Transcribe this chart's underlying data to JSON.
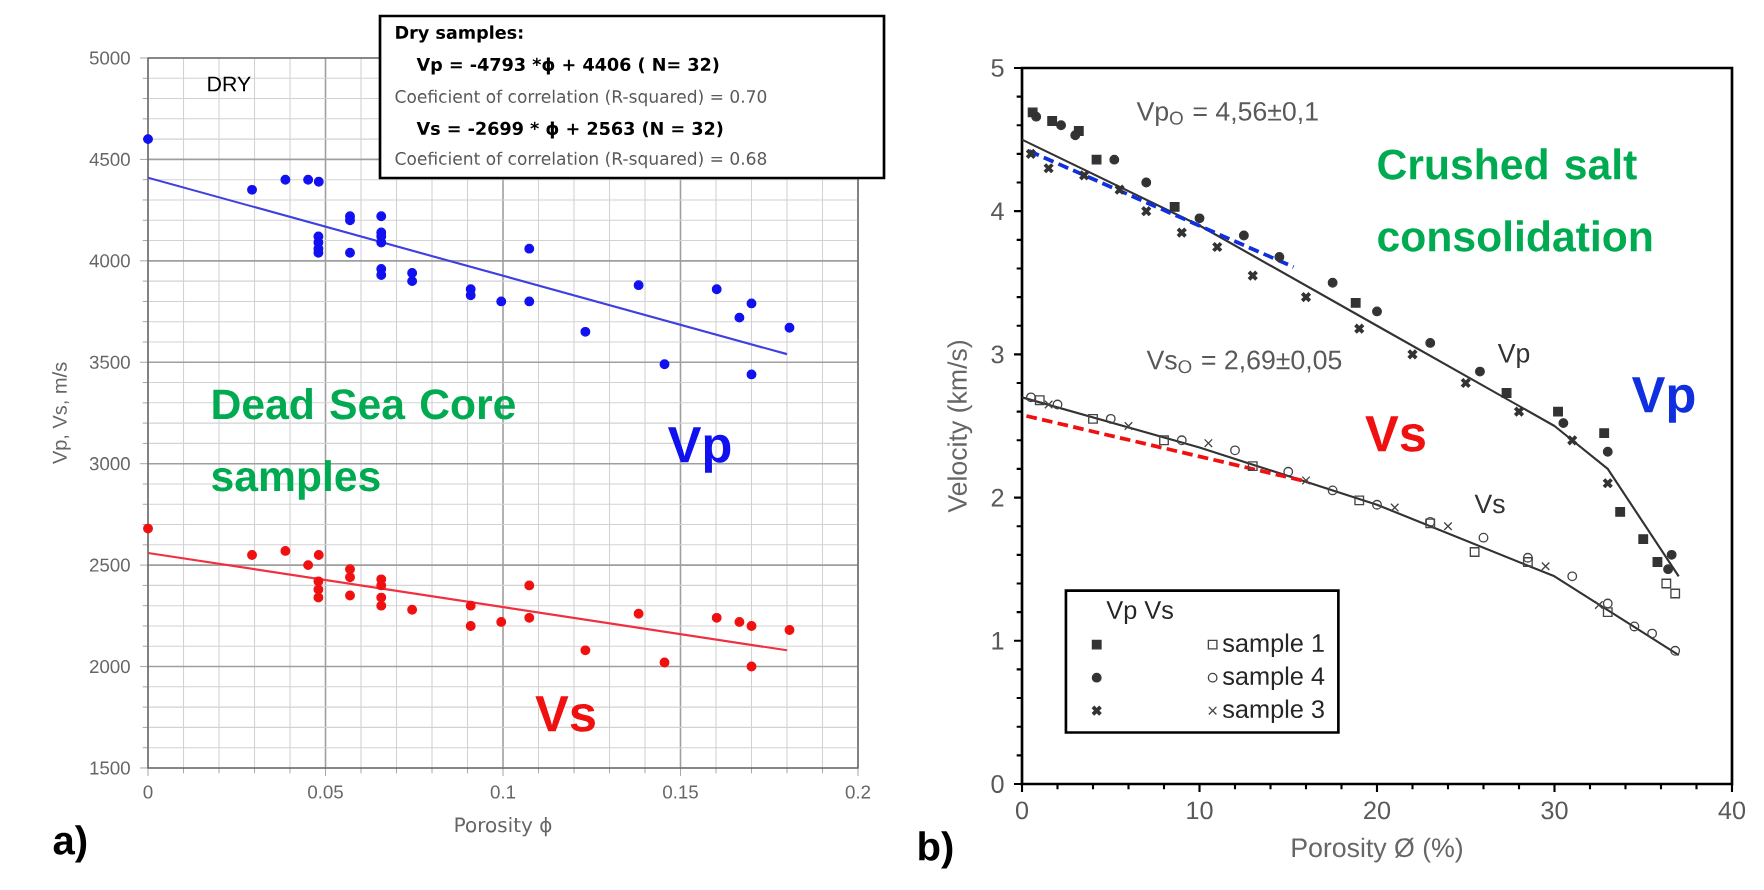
{
  "chart_data": [
    {
      "type": "scatter",
      "xlabel": "Porosity ϕ",
      "ylabel": "Vp, Vs, m/s",
      "xlim": [
        0,
        0.2
      ],
      "ylim": [
        1500,
        5000
      ],
      "xticks": [
        0,
        0.05,
        0.1,
        0.15,
        0.2
      ],
      "yticks": [
        1500,
        2000,
        2500,
        3000,
        3500,
        4000,
        4500,
        5000
      ],
      "grid": true,
      "marker": "circle",
      "annotations": [
        "DRY",
        "Dry samples:",
        "Vp = -4793 *ϕ + 4406   ( N= 32)",
        "Coeficient of correlation (R-squared) = 0.70",
        "Vs = -2699 * ϕ + 2563  (N = 32)",
        "Coeficient of correlation (R-squared) = 0.68",
        "Dead Sea Core samples",
        "a)"
      ],
      "series": [
        {
          "name": "Vp",
          "color": "#1010f0",
          "x": [
            0,
            0.0293,
            0.0387,
            0.0451,
            0.0481,
            0.048,
            0.048,
            0.048,
            0.048,
            0.0569,
            0.0569,
            0.0569,
            0.0657,
            0.0657,
            0.0657,
            0.0657,
            0.0657,
            0.0657,
            0.0744,
            0.0744,
            0.0909,
            0.0909,
            0.0995,
            0.1074,
            0.1074,
            0.1232,
            0.1382,
            0.1455,
            0.1602,
            0.1666,
            0.17,
            0.17,
            0.1807
          ],
          "values": [
            4600,
            4350,
            4400,
            4400,
            4390,
            4120,
            4090,
            4060,
            4040,
            4220,
            4200,
            4040,
            4220,
            4140,
            4120,
            4090,
            3960,
            3930,
            3940,
            3900,
            3860,
            3830,
            3800,
            4060,
            3800,
            3650,
            3880,
            3490,
            3860,
            3720,
            3790,
            3440,
            3670
          ]
        },
        {
          "name": "Vs",
          "color": "#f01010",
          "x": [
            0,
            0.0293,
            0.0387,
            0.0451,
            0.0481,
            0.048,
            0.048,
            0.048,
            0.0569,
            0.0569,
            0.0569,
            0.0657,
            0.0657,
            0.0657,
            0.0657,
            0.0744,
            0.0909,
            0.0909,
            0.0995,
            0.1074,
            0.1074,
            0.1232,
            0.1382,
            0.1455,
            0.1602,
            0.1666,
            0.17,
            0.17,
            0.1807
          ],
          "values": [
            2680,
            2550,
            2570,
            2500,
            2550,
            2420,
            2380,
            2340,
            2480,
            2440,
            2350,
            2430,
            2400,
            2340,
            2300,
            2280,
            2300,
            2200,
            2220,
            2400,
            2240,
            2080,
            2260,
            2020,
            2240,
            2220,
            2200,
            2000,
            2180
          ]
        },
        {
          "type": "line",
          "color": "#4040e0",
          "marker": "none",
          "x": [
            0,
            0.18
          ],
          "values": [
            4410,
            3540
          ]
        },
        {
          "type": "line",
          "color": "#f03040",
          "marker": "none",
          "x": [
            0,
            0.18
          ],
          "values": [
            2560,
            2080
          ]
        }
      ]
    },
    {
      "type": "scatter",
      "xlabel": "Porosity Ø (%)",
      "ylabel": "Velocity (km/s)",
      "xlim": [
        0,
        40
      ],
      "ylim": [
        0,
        5
      ],
      "xticks": [
        0,
        10,
        20,
        30,
        40
      ],
      "yticks": [
        0,
        1,
        2,
        3,
        4,
        5
      ],
      "legend": "bottom left",
      "legend_title": "Vp Vs",
      "annotations": [
        "Vp$_{O}$ = 4,56±0,1",
        "Vs$_{O}$ = 2,69±0,05",
        "Crushed salt consolidation",
        "b)"
      ],
      "series": [
        {
          "color": "#333333",
          "marker": "square",
          "x": [
            0.6,
            1.7,
            3.2,
            4.2,
            8.6,
            18.8,
            27.3,
            30.2,
            32.8,
            33.7,
            35.0,
            35.8
          ],
          "values": [
            4.69,
            4.63,
            4.56,
            4.36,
            4.03,
            3.36,
            2.73,
            2.6,
            2.45,
            1.9,
            1.71,
            1.55
          ]
        },
        {
          "color": "#333333",
          "marker": "circle",
          "x": [
            0.8,
            2.2,
            3.0,
            5.2,
            7.0,
            10.0,
            12.5,
            14.5,
            17.5,
            20.0,
            23.0,
            25.8,
            30.5,
            33.0,
            36.6,
            36.4
          ],
          "values": [
            4.66,
            4.6,
            4.53,
            4.36,
            4.2,
            3.95,
            3.83,
            3.68,
            3.5,
            3.3,
            3.08,
            2.88,
            2.52,
            2.32,
            1.6,
            1.5
          ]
        },
        {
          "color": "#333333",
          "marker": "cross",
          "x": [
            0.5,
            1.5,
            3.5,
            5.5,
            7.0,
            9.0,
            11.0,
            13.0,
            16.0,
            19.0,
            22.0,
            25.0,
            28.0,
            31.0,
            33.0
          ],
          "values": [
            4.4,
            4.3,
            4.25,
            4.15,
            4.0,
            3.85,
            3.75,
            3.55,
            3.4,
            3.18,
            3.0,
            2.8,
            2.6,
            2.4,
            2.1
          ]
        },
        {
          "name": "sample 1",
          "color": "#444444",
          "marker": "square",
          "x": [
            1.0,
            4.0,
            8.0,
            13.0,
            19.0,
            23.0,
            25.5,
            28.5,
            33.0,
            36.3,
            36.8
          ],
          "values": [
            2.68,
            2.55,
            2.4,
            2.22,
            1.98,
            1.82,
            1.62,
            1.55,
            1.2,
            1.4,
            1.33
          ]
        },
        {
          "name": "sample 4",
          "color": "#444444",
          "marker": "circle",
          "x": [
            0.5,
            2.0,
            5.0,
            9.0,
            12.0,
            15.0,
            17.5,
            20.0,
            23.0,
            26.0,
            28.5,
            31.0,
            33.0,
            34.5,
            35.5,
            36.8
          ],
          "values": [
            2.7,
            2.65,
            2.55,
            2.4,
            2.33,
            2.18,
            2.05,
            1.95,
            1.83,
            1.72,
            1.58,
            1.45,
            1.26,
            1.1,
            1.05,
            0.93
          ]
        },
        {
          "name": "sample 3",
          "color": "#444444",
          "marker": "cross",
          "x": [
            1.5,
            6.0,
            10.5,
            16.0,
            21.0,
            24.0,
            29.5,
            32.5
          ],
          "values": [
            2.65,
            2.5,
            2.38,
            2.12,
            1.93,
            1.8,
            1.52,
            1.25
          ]
        },
        {
          "type": "line",
          "name": "Vp",
          "color": "#333333",
          "marker": "none",
          "x": [
            0,
            10,
            20,
            30,
            33,
            37
          ],
          "values": [
            4.5,
            3.9,
            3.2,
            2.5,
            2.2,
            1.45
          ]
        },
        {
          "type": "line",
          "name": "Vs",
          "color": "#333333",
          "marker": "none",
          "x": [
            0,
            10,
            20,
            30,
            37
          ],
          "values": [
            2.7,
            2.35,
            1.95,
            1.45,
            0.9
          ]
        },
        {
          "type": "line",
          "name": "Vp",
          "color": "#1030e0",
          "marker": "none",
          "line_style": "dashed",
          "x": [
            0.4,
            15.3
          ],
          "values": [
            4.42,
            3.61
          ]
        },
        {
          "type": "line",
          "name": "Vs",
          "color": "#f01010",
          "marker": "none",
          "line_style": "dashed",
          "x": [
            0.25,
            16.1
          ],
          "values": [
            2.57,
            2.11
          ]
        }
      ]
    }
  ]
}
